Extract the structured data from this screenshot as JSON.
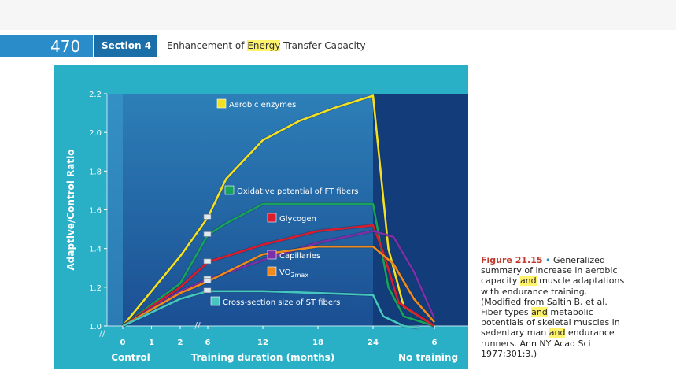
{
  "header": {
    "page_number": "470",
    "section": "Section 4",
    "title_before": "Enhancement of ",
    "title_highlight": "Energy",
    "title_after": " Transfer Capacity"
  },
  "chart_data": {
    "type": "line",
    "ylabel": "Adaptive/Control Ratio",
    "xlabel": "Training duration (months)",
    "ylim": [
      1.0,
      2.2
    ],
    "yticks": [
      1.0,
      1.2,
      1.4,
      1.6,
      1.8,
      2.0,
      2.2
    ],
    "ytick_labels": [
      "1.0",
      "1.2",
      "1.4",
      "1.6",
      "1.8",
      "2.0",
      "2.2"
    ],
    "xtick_labels": [
      "0",
      "1",
      "2",
      "6",
      "12",
      "18",
      "24",
      "6"
    ],
    "phase_labels": [
      "Control",
      "Training duration (months)",
      "No training"
    ],
    "axis_break_mark": "//",
    "phases": {
      "control_end": 0,
      "detraining_start": 24,
      "note": "x values in months; detraining phase x given as months after stopping"
    },
    "series": [
      {
        "name": "Aerobic enzymes",
        "color": "#f3e022",
        "training": [
          [
            0,
            1.0
          ],
          [
            2,
            1.36
          ],
          [
            6,
            1.56
          ],
          [
            8,
            1.76
          ],
          [
            12,
            1.96
          ],
          [
            16,
            2.06
          ],
          [
            20,
            2.13
          ],
          [
            24,
            2.19
          ]
        ],
        "detraining": [
          [
            0,
            2.19
          ],
          [
            1.5,
            1.4
          ],
          [
            3,
            1.1
          ],
          [
            6,
            1.0
          ]
        ]
      },
      {
        "name": "Oxidative potential of FT fibers",
        "color": "#19a35a",
        "training": [
          [
            0,
            1.0
          ],
          [
            2,
            1.22
          ],
          [
            6,
            1.47
          ],
          [
            8,
            1.53
          ],
          [
            12,
            1.63
          ],
          [
            24,
            1.63
          ]
        ],
        "detraining": [
          [
            0,
            1.63
          ],
          [
            1.5,
            1.2
          ],
          [
            3,
            1.05
          ],
          [
            6,
            1.0
          ]
        ]
      },
      {
        "name": "Glycogen",
        "color": "#d91d2e",
        "training": [
          [
            0,
            1.0
          ],
          [
            2,
            1.2
          ],
          [
            6,
            1.33
          ],
          [
            12,
            1.42
          ],
          [
            18,
            1.49
          ],
          [
            24,
            1.52
          ]
        ],
        "detraining": [
          [
            0,
            1.52
          ],
          [
            1,
            1.38
          ],
          [
            2.5,
            1.12
          ],
          [
            6,
            1.0
          ]
        ]
      },
      {
        "name": "Capillaries",
        "color": "#7b2fa8",
        "training": [
          [
            0,
            1.0
          ],
          [
            2,
            1.18
          ],
          [
            6,
            1.24
          ],
          [
            12,
            1.34
          ],
          [
            18,
            1.43
          ],
          [
            24,
            1.49
          ]
        ],
        "detraining": [
          [
            0,
            1.49
          ],
          [
            2,
            1.46
          ],
          [
            4,
            1.28
          ],
          [
            6,
            1.04
          ]
        ]
      },
      {
        "name": "VO2max",
        "label_main": "VO",
        "label_sub": "2max",
        "color": "#f08a1c",
        "training": [
          [
            0,
            1.0
          ],
          [
            2,
            1.17
          ],
          [
            6,
            1.23
          ],
          [
            12,
            1.37
          ],
          [
            18,
            1.41
          ],
          [
            24,
            1.41
          ]
        ],
        "detraining": [
          [
            0,
            1.41
          ],
          [
            2,
            1.32
          ],
          [
            4,
            1.14
          ],
          [
            6,
            1.02
          ]
        ]
      },
      {
        "name": "Cross-section size of ST fibers",
        "color": "#45c7c0",
        "training": [
          [
            0,
            1.0
          ],
          [
            2,
            1.14
          ],
          [
            6,
            1.18
          ],
          [
            12,
            1.18
          ],
          [
            18,
            1.17
          ],
          [
            24,
            1.16
          ]
        ],
        "detraining": [
          [
            0,
            1.16
          ],
          [
            1,
            1.05
          ],
          [
            3,
            1.0
          ],
          [
            4.5,
            0.99
          ]
        ]
      }
    ]
  },
  "caption": {
    "figure_label": "Figure 21.15",
    "bullet": "•",
    "text_1": "Generalized summary of increase in aerobic capacity ",
    "highlight_1": "and",
    "text_2": " muscle adaptations with endurance training. (Modified from Saltin B, et al. Fiber types ",
    "highlight_2": "and",
    "text_3": " metabolic potentials of skeletal muscles in sedentary man ",
    "highlight_3": "and",
    "text_4": " endurance runners. Ann NY Acad Sci 1977;301:3.)"
  },
  "colors": {
    "panel_bg": "#2ab0c6",
    "plot_bg_top": "#2d7fb8",
    "plot_bg_bottom": "#1b4f93",
    "detrain_bg": "#123c7a",
    "control_bg": "#3a9ed0"
  }
}
